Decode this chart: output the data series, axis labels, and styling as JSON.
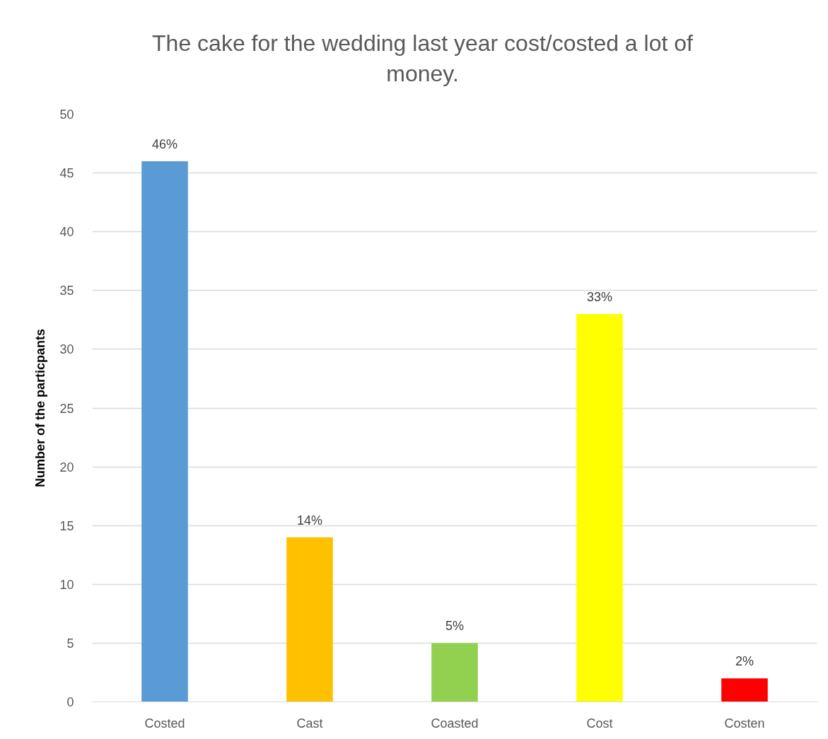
{
  "chart_data": {
    "type": "bar",
    "title": "The cake for the wedding last year cost/costed a lot of money.",
    "ylabel": "Number of the particpants",
    "categories": [
      "Costed",
      "Cast",
      "Coasted",
      "Cost",
      "Costen"
    ],
    "values": [
      46,
      14,
      5,
      33,
      2
    ],
    "colors": [
      "#5b9bd5",
      "#ffc000",
      "#92d050",
      "#ffff00",
      "#ff0000"
    ],
    "value_labels": [
      "46%",
      "14%",
      "5%",
      "33%",
      "2%"
    ],
    "ylim": [
      0,
      50
    ],
    "yticks": [
      0,
      5,
      10,
      15,
      20,
      25,
      30,
      35,
      40,
      45,
      50
    ],
    "grid": "y"
  }
}
